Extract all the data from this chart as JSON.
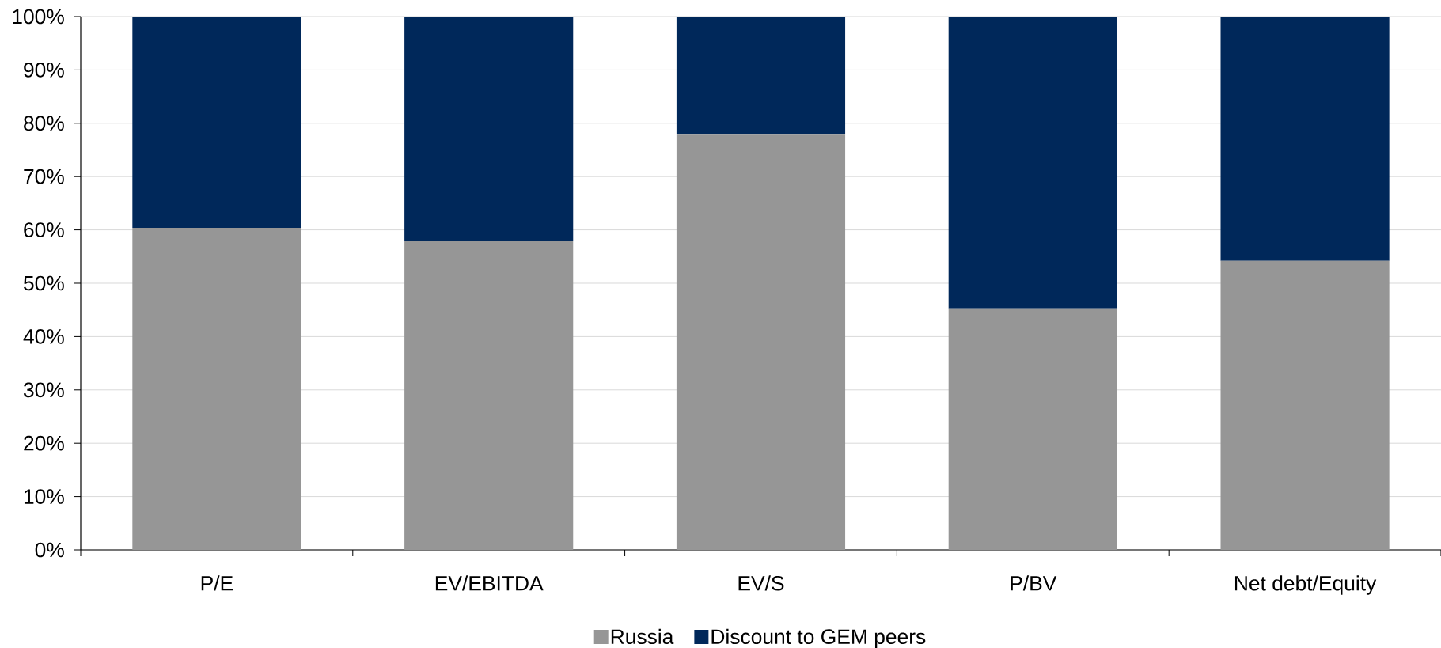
{
  "chart_data": {
    "type": "bar",
    "stacked": true,
    "categories": [
      "P/E",
      "EV/EBITDA",
      "EV/S",
      "P/BV",
      "Net debt/Equity"
    ],
    "series": [
      {
        "name": "Russia",
        "color": "#969696",
        "values": [
          60.4,
          58,
          78,
          45.3,
          54.2
        ]
      },
      {
        "name": "Discount to GEM peers",
        "color": "#00285a",
        "values": [
          39.6,
          42,
          22,
          54.7,
          45.8
        ]
      }
    ],
    "ylim": [
      0,
      100
    ],
    "yticks": [
      {
        "value": 0,
        "label": "0%"
      },
      {
        "value": 10,
        "label": "10%"
      },
      {
        "value": 20,
        "label": "20%"
      },
      {
        "value": 30,
        "label": "30%"
      },
      {
        "value": 40,
        "label": "40%"
      },
      {
        "value": 50,
        "label": "50%"
      },
      {
        "value": 60,
        "label": "60%"
      },
      {
        "value": 70,
        "label": "70%"
      },
      {
        "value": 80,
        "label": "80%"
      },
      {
        "value": 90,
        "label": "90%"
      },
      {
        "value": 100,
        "label": "100%"
      }
    ],
    "grid": "y",
    "legend": "bottom"
  }
}
